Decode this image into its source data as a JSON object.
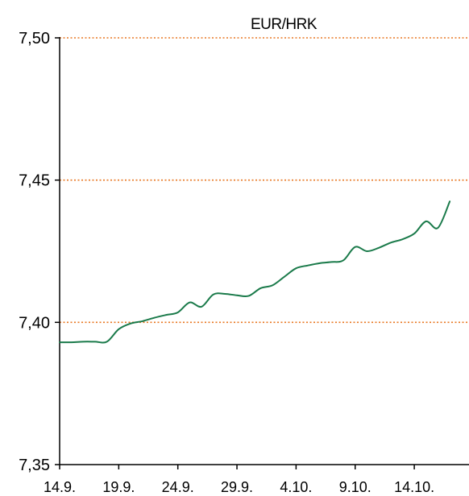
{
  "chart_data": {
    "type": "line",
    "title": "EUR/HRK",
    "xlabel": "",
    "ylabel": "",
    "ylim": [
      7.35,
      7.5
    ],
    "yticks": [
      "7,35",
      "7,40",
      "7,45",
      "7,50"
    ],
    "ytick_values": [
      7.35,
      7.4,
      7.45,
      7.5
    ],
    "gridlines": [
      7.4,
      7.45,
      7.5
    ],
    "xticks": [
      "14.9.",
      "19.9.",
      "24.9.",
      "29.9.",
      "4.10.",
      "9.10.",
      "14.10."
    ],
    "xlim": [
      "2012-09-14",
      "2012-10-17"
    ],
    "colors": {
      "line": "#1a7a4a",
      "grid": "#e87722",
      "axis": "#000000"
    },
    "series": [
      {
        "x": [
          "2012-09-14",
          "2012-09-15",
          "2012-09-16",
          "2012-09-17",
          "2012-09-18",
          "2012-09-19",
          "2012-09-20",
          "2012-09-21",
          "2012-09-22",
          "2012-09-23",
          "2012-09-24",
          "2012-09-25",
          "2012-09-26",
          "2012-09-27",
          "2012-09-28",
          "2012-09-29",
          "2012-09-30",
          "2012-10-01",
          "2012-10-02",
          "2012-10-03",
          "2012-10-04",
          "2012-10-05",
          "2012-10-06",
          "2012-10-07",
          "2012-10-08",
          "2012-10-09",
          "2012-10-10",
          "2012-10-11",
          "2012-10-12",
          "2012-10-13",
          "2012-10-14",
          "2012-10-15",
          "2012-10-16",
          "2012-10-17"
        ],
        "values": [
          7.393,
          7.393,
          7.3932,
          7.3932,
          7.3932,
          7.3976,
          7.3996,
          7.4004,
          7.4016,
          7.4026,
          7.4035,
          7.407,
          7.4055,
          7.4098,
          7.41,
          7.4095,
          7.4093,
          7.412,
          7.413,
          7.416,
          7.419,
          7.42,
          7.4208,
          7.4212,
          7.4218,
          7.4265,
          7.425,
          7.4262,
          7.428,
          7.4292,
          7.4312,
          7.4355,
          7.4332,
          7.4425
        ]
      }
    ]
  }
}
